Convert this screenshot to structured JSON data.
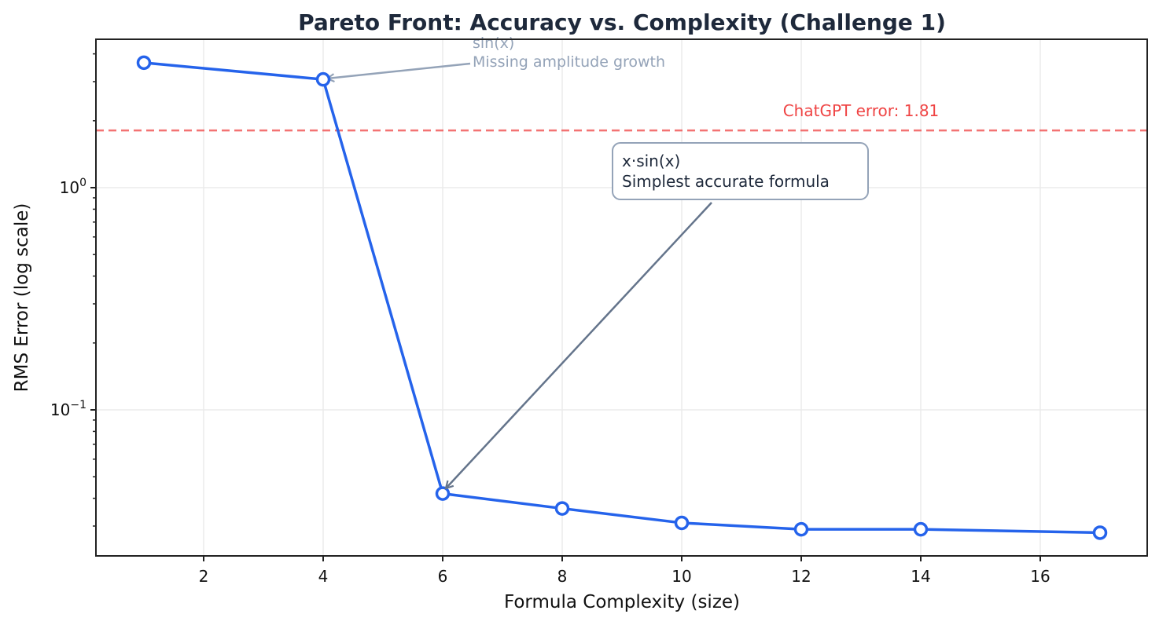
{
  "chart_data": {
    "type": "line",
    "title": "Pareto Front: Accuracy vs. Complexity (Challenge 1)",
    "xlabel": "Formula Complexity (size)",
    "ylabel": "RMS Error (log scale)",
    "yscale": "log",
    "x": [
      1,
      4,
      6,
      8,
      10,
      12,
      14,
      17
    ],
    "series": [
      {
        "name": "Pareto front",
        "values": [
          3.65,
          3.07,
          0.042,
          0.036,
          0.031,
          0.029,
          0.029,
          0.028
        ],
        "color": "#2563eb",
        "marker": "hollow-circle"
      }
    ],
    "xlim": [
      0.2,
      17.8
    ],
    "ylim": [
      0.022,
      4.7
    ],
    "xticks": [
      2,
      4,
      6,
      8,
      10,
      12,
      14,
      16
    ],
    "yticks": [
      {
        "value": 1.0,
        "base": "10",
        "exp": "0"
      },
      {
        "value": 0.1,
        "base": "10",
        "exp": "−1"
      }
    ],
    "grid": true,
    "reference_line": {
      "value": 1.81,
      "label": "ChatGPT error: 1.81",
      "color": "#ef4444",
      "style": "dashed"
    },
    "annotations": [
      {
        "target_x": 4,
        "target_y": 3.07,
        "lines": [
          "sin(x)",
          "Missing amplitude growth"
        ],
        "color": "#94a3b8",
        "boxed": false
      },
      {
        "target_x": 6,
        "target_y": 0.042,
        "lines": [
          "x·sin(x)",
          "Simplest accurate formula"
        ],
        "color": "#1e293b",
        "arrow_color": "#64748b",
        "box_border": "#94a3b8",
        "boxed": true
      }
    ]
  }
}
